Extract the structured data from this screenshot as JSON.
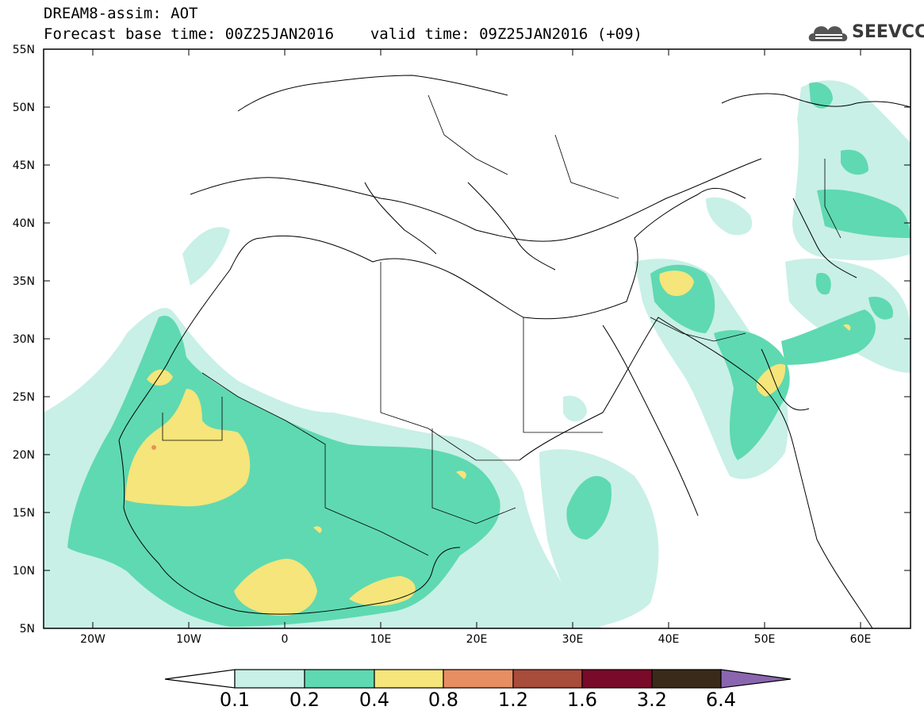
{
  "header": {
    "title": "DREAM8-assim: AOT",
    "base_time": "Forecast base time: 00Z25JAN2016",
    "valid_time": "valid time: 09Z25JAN2016 (+09)"
  },
  "logo": {
    "text": "SEEVCCC",
    "icon": "cloud-logo-icon"
  },
  "map": {
    "lat_labels": [
      "55N",
      "50N",
      "45N",
      "40N",
      "35N",
      "30N",
      "25N",
      "20N",
      "15N",
      "10N",
      "5N"
    ],
    "lon_labels": [
      "20W",
      "10W",
      "0",
      "10E",
      "20E",
      "30E",
      "40E",
      "50E",
      "60E"
    ],
    "background": "#ffffff",
    "land_outline": "#000000"
  },
  "colorbar": {
    "levels": [
      "0.1",
      "0.2",
      "0.4",
      "0.8",
      "1.2",
      "1.6",
      "3.2",
      "6.4"
    ],
    "colors": [
      "#ffffff",
      "#c8f0e6",
      "#5fd9b1",
      "#f5e57a",
      "#e88e63",
      "#a84c3c",
      "#7a0a2a",
      "#3a2a1a",
      "#8a66b0"
    ]
  }
}
